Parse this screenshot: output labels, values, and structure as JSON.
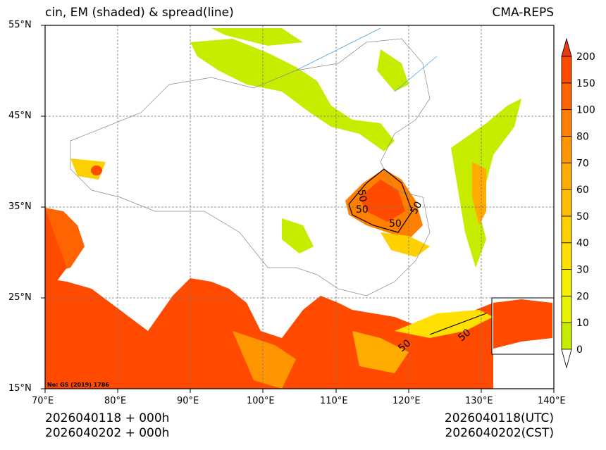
{
  "header": {
    "title_left": "cin, EM (shaded) & spread(line)",
    "title_right": "CMA-REPS"
  },
  "map": {
    "lat_labels": [
      "55°N",
      "45°N",
      "35°N",
      "25°N",
      "15°N"
    ],
    "lon_labels": [
      "70°E",
      "80°E",
      "90°E",
      "100°E",
      "110°E",
      "120°E",
      "130°E",
      "140°E"
    ],
    "extent": {
      "lon": [
        70,
        140
      ],
      "lat": [
        15,
        55
      ]
    },
    "approval_no": "No: GS (2019) 1786",
    "contour_labels": [
      "50",
      "50",
      "50",
      "50",
      "50",
      "50"
    ]
  },
  "colorbar": {
    "levels": [
      "0",
      "10",
      "20",
      "30",
      "40",
      "50",
      "60",
      "70",
      "80",
      "100",
      "150",
      "200"
    ],
    "colors": [
      "#c8ec00",
      "#e6f400",
      "#f7ef00",
      "#ffe000",
      "#ffd000",
      "#ffbc00",
      "#ffab00",
      "#ff9600",
      "#ff8000",
      "#ff6400",
      "#ff4a00"
    ],
    "over_color": "#e63a10",
    "under_color": "#ffffff"
  },
  "footer": {
    "init_line": "2026040118  +  000h",
    "valid_line": "2026040202  +  000h",
    "utc_time": "2026040118(UTC)",
    "cst_time": "2026040202(CST)"
  }
}
